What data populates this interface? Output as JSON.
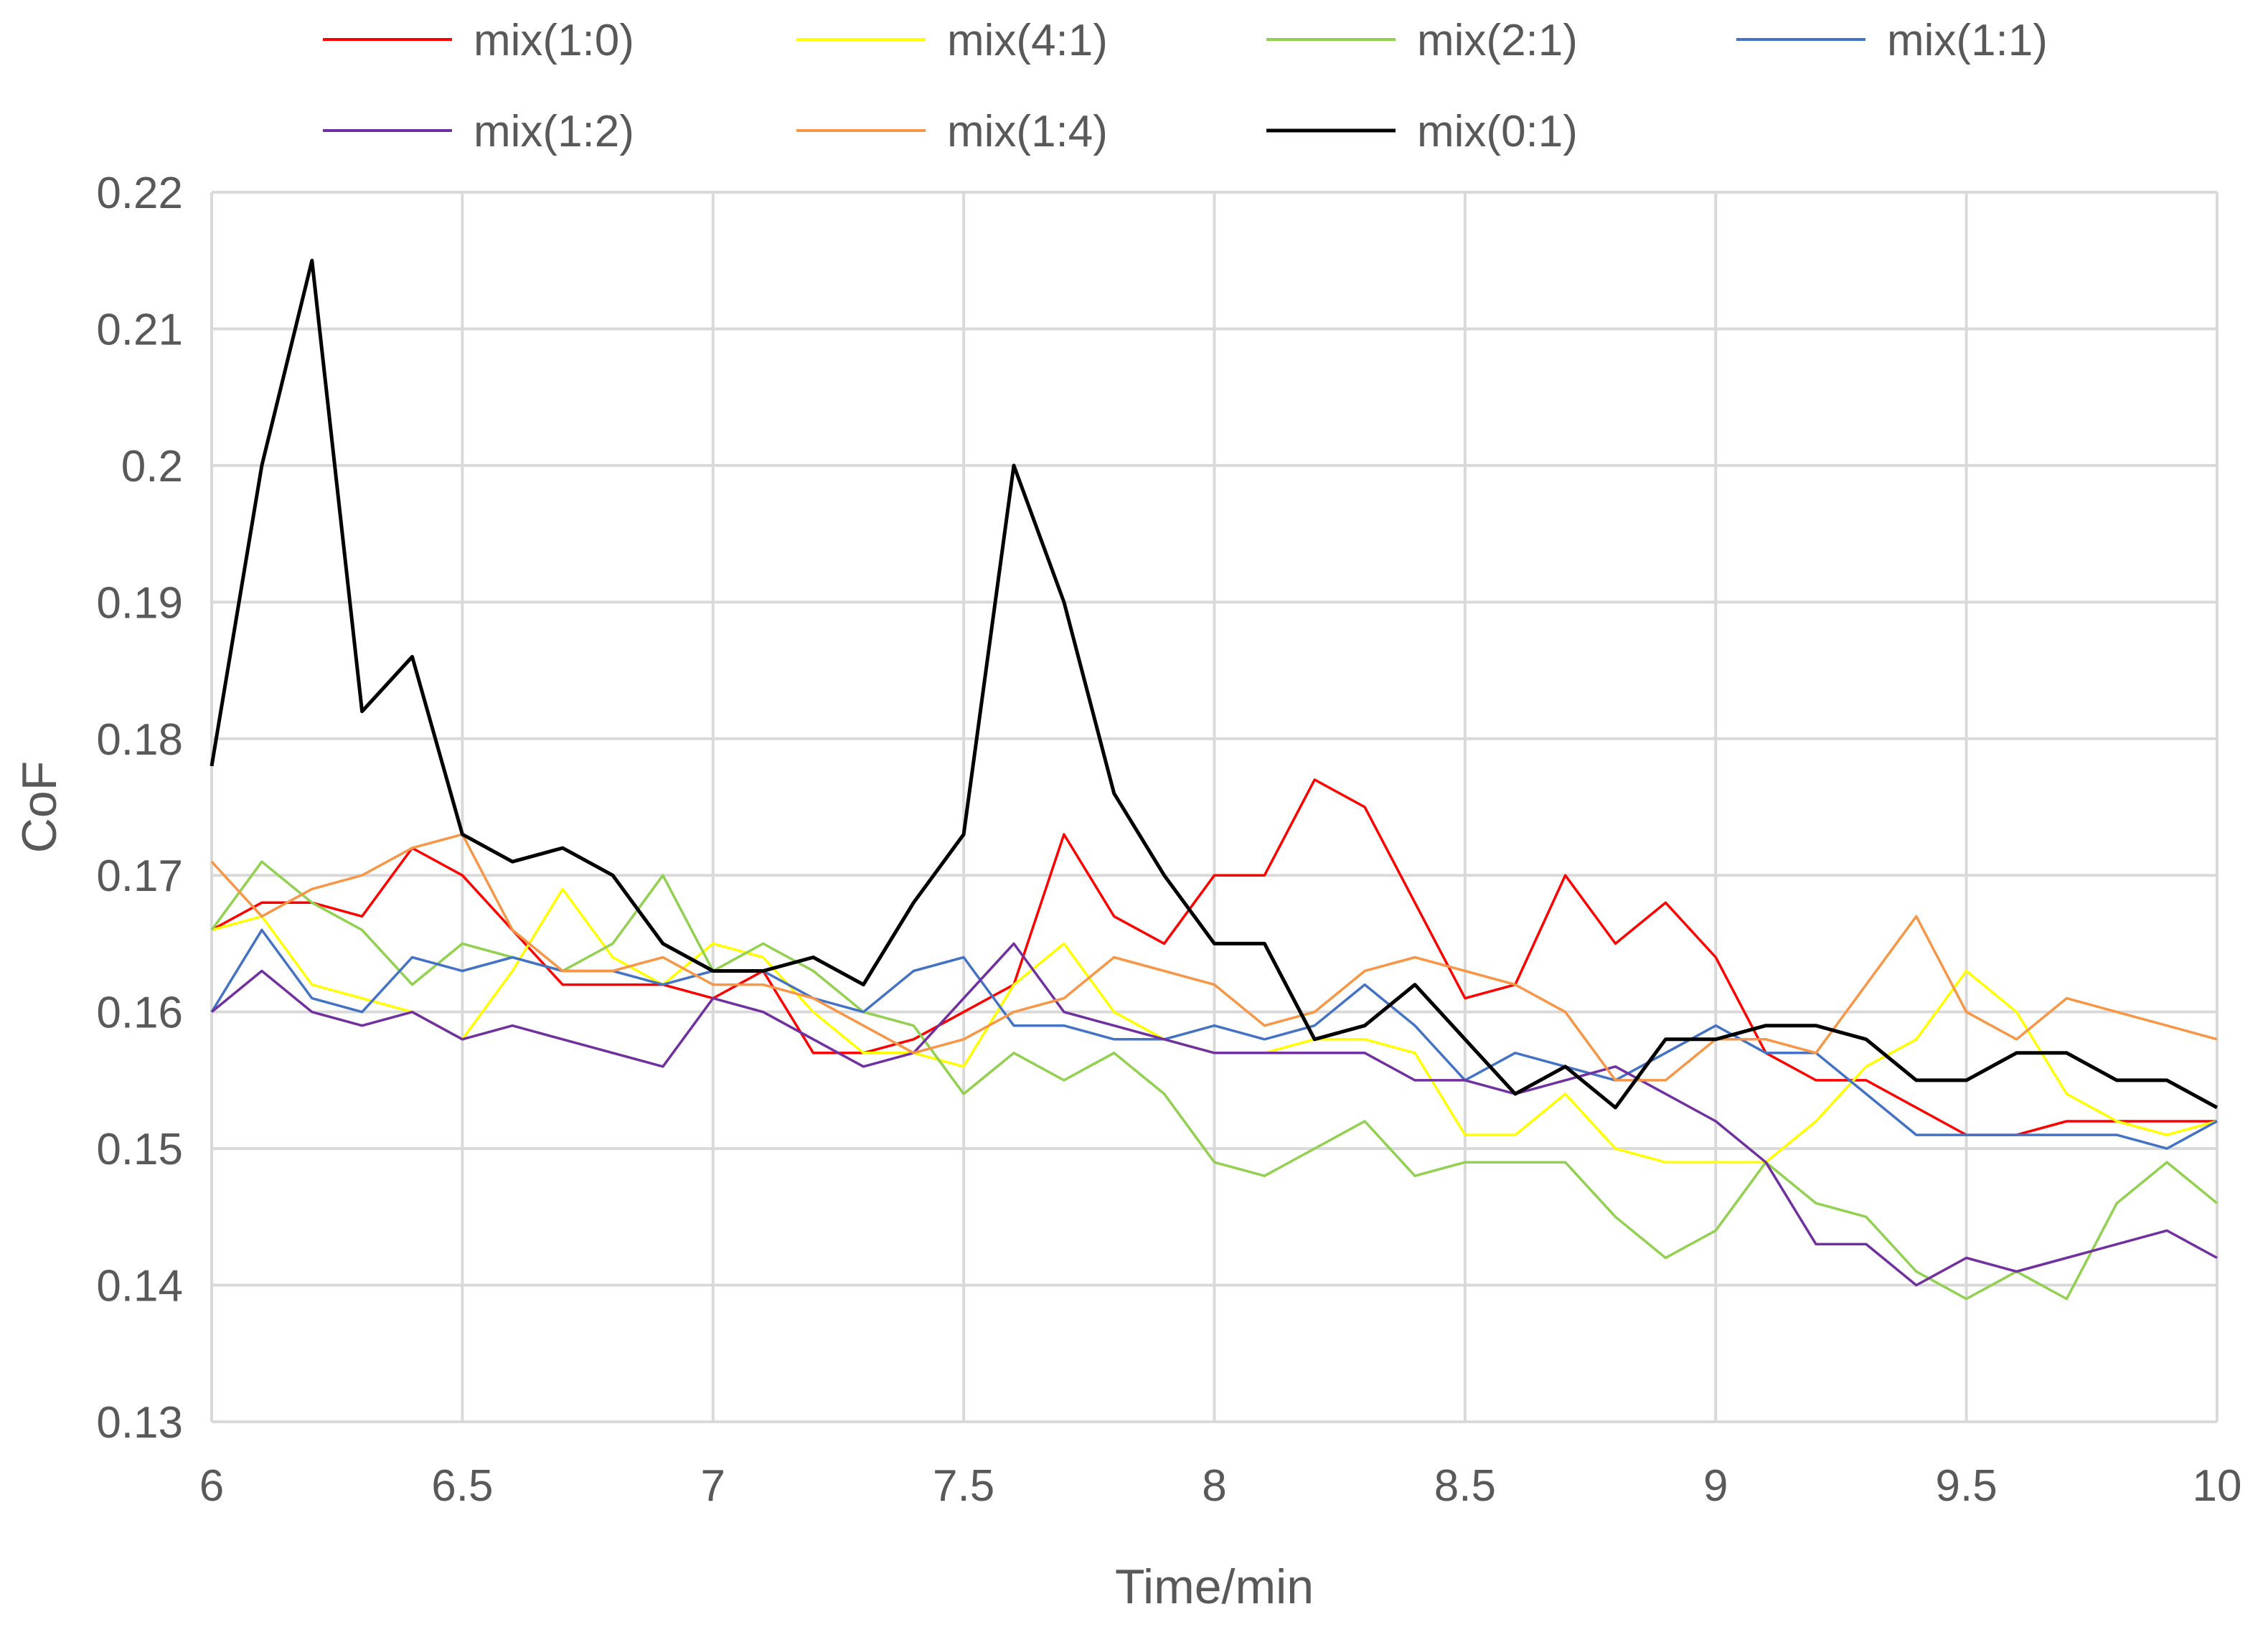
{
  "chart_data": {
    "type": "line",
    "title": "",
    "xlabel": "Time/min",
    "ylabel": "CoF",
    "xlim": [
      6,
      10
    ],
    "ylim": [
      0.13,
      0.22
    ],
    "xticks": [
      "6",
      "6.5",
      "7",
      "7.5",
      "8",
      "8.5",
      "9",
      "9.5",
      "10"
    ],
    "yticks": [
      "0.13",
      "0.14",
      "0.15",
      "0.16",
      "0.17",
      "0.18",
      "0.19",
      "0.2",
      "0.21",
      "0.22"
    ],
    "grid": true,
    "legend_position": "top",
    "x": [
      6.0,
      6.1,
      6.2,
      6.3,
      6.4,
      6.5,
      6.6,
      6.7,
      6.8,
      6.9,
      7.0,
      7.1,
      7.2,
      7.3,
      7.4,
      7.5,
      7.6,
      7.7,
      7.8,
      7.9,
      8.0,
      8.1,
      8.2,
      8.3,
      8.4,
      8.5,
      8.6,
      8.7,
      8.8,
      8.9,
      9.0,
      9.1,
      9.2,
      9.3,
      9.4,
      9.5,
      9.6,
      9.7,
      9.8,
      9.9,
      10.0
    ],
    "series": [
      {
        "name": "mix(1:0)",
        "color": "#ff0000",
        "values": [
          0.166,
          0.168,
          0.168,
          0.167,
          0.172,
          0.17,
          0.166,
          0.162,
          0.162,
          0.162,
          0.161,
          0.163,
          0.157,
          0.157,
          0.158,
          0.16,
          0.162,
          0.173,
          0.167,
          0.165,
          0.17,
          0.17,
          0.177,
          0.175,
          0.168,
          0.161,
          0.162,
          0.17,
          0.165,
          0.168,
          0.164,
          0.157,
          0.155,
          0.155,
          0.153,
          0.151,
          0.151,
          0.152,
          0.152,
          0.152,
          0.152
        ]
      },
      {
        "name": "mix(4:1)",
        "color": "#ffff00",
        "values": [
          0.166,
          0.167,
          0.162,
          0.161,
          0.16,
          0.158,
          0.163,
          0.169,
          0.164,
          0.162,
          0.165,
          0.164,
          0.16,
          0.157,
          0.157,
          0.156,
          0.162,
          0.165,
          0.16,
          0.158,
          0.157,
          0.157,
          0.158,
          0.158,
          0.157,
          0.151,
          0.151,
          0.154,
          0.15,
          0.149,
          0.149,
          0.149,
          0.152,
          0.156,
          0.158,
          0.163,
          0.16,
          0.154,
          0.152,
          0.151,
          0.152
        ]
      },
      {
        "name": "mix(2:1)",
        "color": "#92d050",
        "values": [
          0.166,
          0.171,
          0.168,
          0.166,
          0.162,
          0.165,
          0.164,
          0.163,
          0.165,
          0.17,
          0.163,
          0.165,
          0.163,
          0.16,
          0.159,
          0.154,
          0.157,
          0.155,
          0.157,
          0.154,
          0.149,
          0.148,
          0.15,
          0.152,
          0.148,
          0.149,
          0.149,
          0.149,
          0.145,
          0.142,
          0.144,
          0.149,
          0.146,
          0.145,
          0.141,
          0.139,
          0.141,
          0.139,
          0.146,
          0.149,
          0.146
        ]
      },
      {
        "name": "mix(1:1)",
        "color": "#4472c4",
        "values": [
          0.16,
          0.166,
          0.161,
          0.16,
          0.164,
          0.163,
          0.164,
          0.163,
          0.163,
          0.162,
          0.163,
          0.163,
          0.161,
          0.16,
          0.163,
          0.164,
          0.159,
          0.159,
          0.158,
          0.158,
          0.159,
          0.158,
          0.159,
          0.162,
          0.159,
          0.155,
          0.157,
          0.156,
          0.155,
          0.157,
          0.159,
          0.157,
          0.157,
          0.154,
          0.151,
          0.151,
          0.151,
          0.151,
          0.151,
          0.15,
          0.152
        ]
      },
      {
        "name": "mix(1:2)",
        "color": "#7030a0",
        "values": [
          0.16,
          0.163,
          0.16,
          0.159,
          0.16,
          0.158,
          0.159,
          0.158,
          0.157,
          0.156,
          0.161,
          0.16,
          0.158,
          0.156,
          0.157,
          0.161,
          0.165,
          0.16,
          0.159,
          0.158,
          0.157,
          0.157,
          0.157,
          0.157,
          0.155,
          0.155,
          0.154,
          0.155,
          0.156,
          0.154,
          0.152,
          0.149,
          0.143,
          0.143,
          0.14,
          0.142,
          0.141,
          0.142,
          0.143,
          0.144,
          0.142
        ]
      },
      {
        "name": "mix(1:4)",
        "color": "#f79646",
        "values": [
          0.171,
          0.167,
          0.169,
          0.17,
          0.172,
          0.173,
          0.166,
          0.163,
          0.163,
          0.164,
          0.162,
          0.162,
          0.161,
          0.159,
          0.157,
          0.158,
          0.16,
          0.161,
          0.164,
          0.163,
          0.162,
          0.159,
          0.16,
          0.163,
          0.164,
          0.163,
          0.162,
          0.16,
          0.155,
          0.155,
          0.158,
          0.158,
          0.157,
          0.162,
          0.167,
          0.16,
          0.158,
          0.161,
          0.16,
          0.159,
          0.158
        ]
      },
      {
        "name": "mix(0:1)",
        "color": "#000000",
        "values": [
          0.178,
          0.2,
          0.215,
          0.182,
          0.186,
          0.173,
          0.171,
          0.172,
          0.17,
          0.165,
          0.163,
          0.163,
          0.164,
          0.162,
          0.168,
          0.173,
          0.2,
          0.19,
          0.176,
          0.17,
          0.165,
          0.165,
          0.158,
          0.159,
          0.162,
          0.158,
          0.154,
          0.156,
          0.153,
          0.158,
          0.158,
          0.159,
          0.159,
          0.158,
          0.155,
          0.155,
          0.157,
          0.157,
          0.155,
          0.155,
          0.153
        ]
      }
    ]
  }
}
